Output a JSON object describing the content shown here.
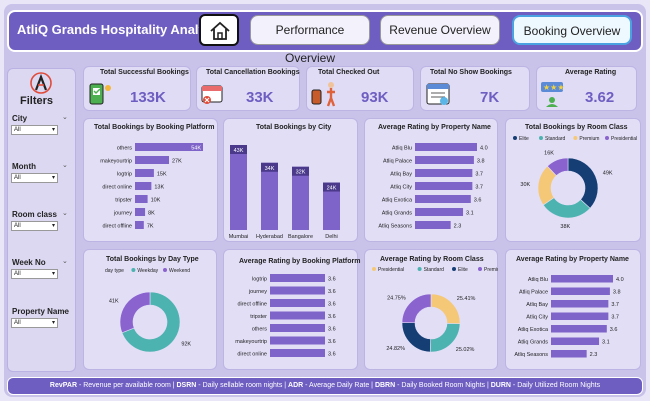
{
  "header": {
    "title": "AtliQ Grands Hospitality Analysis",
    "tabs": [
      "Performance Overview",
      "Revenue Overview",
      "Booking Overview"
    ],
    "active_tab": "Booking Overview"
  },
  "filters": {
    "title": "Filters",
    "items": [
      {
        "label": "City",
        "value": "All"
      },
      {
        "label": "Month",
        "value": "All"
      },
      {
        "label": "Room class",
        "value": "All"
      },
      {
        "label": "Week No",
        "value": "All"
      },
      {
        "label": "Property Name",
        "value": "All"
      }
    ]
  },
  "kpis": [
    {
      "title": "Total Successful Bookings",
      "value": "133K"
    },
    {
      "title": "Total Cancellation Bookings",
      "value": "33K"
    },
    {
      "title": "Total Checked Out",
      "value": "93K"
    },
    {
      "title": "Total No Show Bookings",
      "value": "7K"
    },
    {
      "title": "Average Rating",
      "value": "3.62"
    }
  ],
  "footer": {
    "segments": [
      {
        "key": "RevPAR",
        "desc": " - Revenue per available room | "
      },
      {
        "key": "DSRN",
        "desc": " - Daily sellable room nights | "
      },
      {
        "key": "ADR",
        "desc": " - Average Daily Rate | "
      },
      {
        "key": "DBRN",
        "desc": " - Daily Booked Room Nights | "
      },
      {
        "key": "DURN",
        "desc": " - Daily Utilized Room Nights"
      }
    ]
  },
  "colors": {
    "accent": "#6f5ec2",
    "bar": "#7e63c9",
    "teal": "#4db3b0",
    "navy": "#153e75",
    "gold": "#f5c878",
    "violet": "#8a63cf"
  },
  "chart_data": [
    {
      "id": "platform",
      "type": "bar",
      "orientation": "horizontal",
      "title": "Total Bookings by Booking Platform",
      "categories": [
        "others",
        "makeyourtrip",
        "logtrip",
        "direct online",
        "tripster",
        "journey",
        "direct offline"
      ],
      "values": [
        54,
        27,
        15,
        13,
        10,
        8,
        7
      ],
      "labels": [
        "54K",
        "27K",
        "15K",
        "13K",
        "10K",
        "8K",
        "7K"
      ],
      "xlim": [
        0,
        54
      ]
    },
    {
      "id": "city",
      "type": "bar",
      "orientation": "vertical",
      "title": "Total Bookings by City",
      "categories": [
        "Mumbai",
        "Hyderabad",
        "Bangalore",
        "Delhi"
      ],
      "values": [
        43,
        34,
        32,
        24
      ],
      "labels": [
        "43K",
        "34K",
        "32K",
        "24K"
      ],
      "ylim": [
        0,
        43
      ]
    },
    {
      "id": "prop1",
      "type": "bar",
      "orientation": "horizontal",
      "title": "Average Rating by Property Name",
      "categories": [
        "Atliq Blu",
        "Atliq Palace",
        "Atliq Bay",
        "Atliq City",
        "Atliq Exotica",
        "Atliq Grands",
        "Atliq Seasons"
      ],
      "values": [
        4.0,
        3.8,
        3.7,
        3.7,
        3.6,
        3.1,
        2.3
      ],
      "labels": [
        "4.0",
        "3.8",
        "3.7",
        "3.7",
        "3.6",
        "3.1",
        "2.3"
      ],
      "xlim": [
        0,
        4.0
      ]
    },
    {
      "id": "roomclass_bookings",
      "type": "pie",
      "donut": true,
      "title": "Total Bookings by Room Class",
      "categories": [
        "Elite",
        "Standard",
        "Premium",
        "Presidential"
      ],
      "values": [
        49,
        38,
        30,
        16
      ],
      "labels": [
        "49K",
        "38K",
        "30K",
        "16K"
      ]
    },
    {
      "id": "daytype",
      "type": "pie",
      "donut": true,
      "title": "Total Bookings by Day Type",
      "legend_title": "day type",
      "categories": [
        "Weekday",
        "Weekend"
      ],
      "values": [
        92,
        41
      ],
      "labels": [
        "92K",
        "41K"
      ]
    },
    {
      "id": "platform_rating",
      "type": "bar",
      "orientation": "horizontal",
      "title": "Average Rating by Booking Platform",
      "categories": [
        "logtrip",
        "journey",
        "direct offline",
        "tripster",
        "others",
        "makeyourtrip",
        "direct online"
      ],
      "values": [
        3.6,
        3.6,
        3.6,
        3.6,
        3.6,
        3.6,
        3.6
      ],
      "labels": [
        "3.6",
        "3.6",
        "3.6",
        "3.6",
        "3.6",
        "3.6",
        "3.6"
      ],
      "xlim": [
        0,
        3.6
      ]
    },
    {
      "id": "roomclass_rating",
      "type": "pie",
      "donut": true,
      "title": "Average Rating by Room Class",
      "categories": [
        "Presidential",
        "Standard",
        "Elite",
        "Premium"
      ],
      "values": [
        25.41,
        25.02,
        24.82,
        24.75
      ],
      "labels": [
        "25.41%",
        "25.02%",
        "24.82%",
        "24.75%"
      ]
    },
    {
      "id": "prop2",
      "type": "bar",
      "orientation": "horizontal",
      "title": "Average Rating by Property Name",
      "categories": [
        "Atliq Blu",
        "Atliq Palace",
        "Atliq Bay",
        "Atliq City",
        "Atliq Exotica",
        "Atliq Grands",
        "Atliq Seasons"
      ],
      "values": [
        4.0,
        3.8,
        3.7,
        3.7,
        3.6,
        3.1,
        2.3
      ],
      "labels": [
        "4.0",
        "3.8",
        "3.7",
        "3.7",
        "3.6",
        "3.1",
        "2.3"
      ],
      "xlim": [
        0,
        4.0
      ]
    }
  ]
}
